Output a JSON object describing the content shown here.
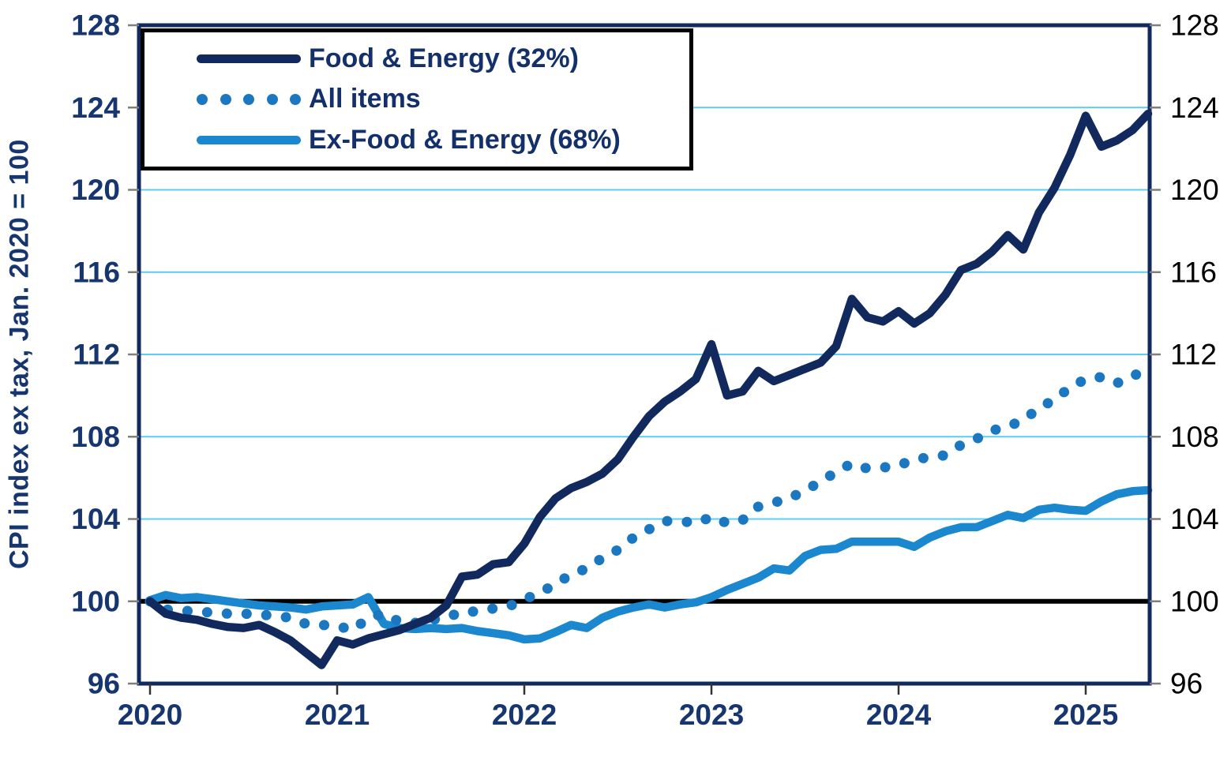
{
  "colors": {
    "navy": "#12295e",
    "mid_blue": "#1b78c0",
    "light_blue": "#1b87ce",
    "grid_cyan": "#5cccf2",
    "reference_black": "#000000",
    "axis_text_navy": "#17356f",
    "right_axis_text": "#000000",
    "tick_gray": "#7f7f7f",
    "legend_border": "#000000",
    "background": "#ffffff"
  },
  "chart_data": {
    "type": "line",
    "title": "",
    "xlabel": "",
    "ylabel": "CPI index ex tax, Jan. 2020 = 100",
    "ylim": [
      96,
      128
    ],
    "yticks": [
      96,
      100,
      104,
      108,
      112,
      116,
      120,
      124,
      128
    ],
    "gridlines": [
      104,
      108,
      112,
      116,
      120,
      124
    ],
    "grid": "horizontal-only",
    "legend_position": "top-left",
    "reference_line": {
      "value": 100,
      "color": "#000000"
    },
    "xticks": [
      "2020",
      "2021",
      "2022",
      "2023",
      "2024",
      "2025"
    ],
    "x_months": [
      "2020-01",
      "2020-02",
      "2020-03",
      "2020-04",
      "2020-05",
      "2020-06",
      "2020-07",
      "2020-08",
      "2020-09",
      "2020-10",
      "2020-11",
      "2020-12",
      "2021-01",
      "2021-02",
      "2021-03",
      "2021-04",
      "2021-05",
      "2021-06",
      "2021-07",
      "2021-08",
      "2021-09",
      "2021-10",
      "2021-11",
      "2021-12",
      "2022-01",
      "2022-02",
      "2022-03",
      "2022-04",
      "2022-05",
      "2022-06",
      "2022-07",
      "2022-08",
      "2022-09",
      "2022-10",
      "2022-11",
      "2022-12",
      "2023-01",
      "2023-02",
      "2023-03",
      "2023-04",
      "2023-05",
      "2023-06",
      "2023-07",
      "2023-08",
      "2023-09",
      "2023-10",
      "2023-11",
      "2023-12",
      "2024-01",
      "2024-02",
      "2024-03",
      "2024-04",
      "2024-05",
      "2024-06",
      "2024-07",
      "2024-08",
      "2024-09",
      "2024-10",
      "2024-11",
      "2024-12",
      "2025-01",
      "2025-02",
      "2025-03",
      "2025-04",
      "2025-05"
    ],
    "series": [
      {
        "name": "Food & Energy (32%)",
        "color": "#12295e",
        "style": "solid",
        "values": [
          100.0,
          99.4,
          99.2,
          99.1,
          98.9,
          98.75,
          98.7,
          98.85,
          98.5,
          98.1,
          97.5,
          96.9,
          98.1,
          97.9,
          98.2,
          98.4,
          98.6,
          98.9,
          99.2,
          99.8,
          101.2,
          101.3,
          101.8,
          101.9,
          102.8,
          104.1,
          105.0,
          105.5,
          105.8,
          106.2,
          106.9,
          108.0,
          109.0,
          109.7,
          110.2,
          110.8,
          112.5,
          110.0,
          110.2,
          111.2,
          110.7,
          111.0,
          111.3,
          111.6,
          112.4,
          114.7,
          113.8,
          113.6,
          114.1,
          113.5,
          114.0,
          114.9,
          116.1,
          116.4,
          117.0,
          117.8,
          117.1,
          118.9,
          120.1,
          121.7,
          123.6,
          122.1,
          122.4,
          122.9,
          123.7
        ]
      },
      {
        "name": "All items",
        "color": "#1b78c0",
        "style": "dotted",
        "values": [
          100.0,
          99.6,
          99.55,
          99.5,
          99.45,
          99.4,
          99.4,
          99.35,
          99.3,
          99.2,
          98.9,
          98.85,
          98.8,
          98.6,
          99.2,
          99.4,
          99.0,
          98.95,
          99.1,
          99.2,
          99.5,
          99.5,
          99.65,
          99.75,
          100.1,
          100.4,
          100.85,
          101.3,
          101.6,
          102.1,
          102.5,
          103.1,
          103.5,
          103.9,
          103.9,
          103.8,
          104.1,
          103.8,
          103.95,
          104.6,
          104.8,
          105.0,
          105.4,
          105.8,
          106.3,
          106.7,
          106.45,
          106.5,
          106.6,
          106.9,
          107.0,
          107.1,
          107.6,
          107.9,
          108.3,
          108.5,
          108.8,
          109.4,
          109.8,
          110.4,
          110.8,
          110.9,
          110.6,
          111.0,
          111.1
        ]
      },
      {
        "name": "Ex-Food & Energy (68%)",
        "color": "#1b87ce",
        "style": "solid",
        "values": [
          100.05,
          100.3,
          100.15,
          100.2,
          100.1,
          100.0,
          99.9,
          99.8,
          99.75,
          99.7,
          99.6,
          99.75,
          99.8,
          99.85,
          100.2,
          98.9,
          98.7,
          98.65,
          98.7,
          98.65,
          98.7,
          98.55,
          98.45,
          98.35,
          98.15,
          98.2,
          98.5,
          98.85,
          98.7,
          99.2,
          99.5,
          99.7,
          99.85,
          99.7,
          99.85,
          99.95,
          100.2,
          100.55,
          100.85,
          101.15,
          101.6,
          101.5,
          102.2,
          102.5,
          102.55,
          102.9,
          102.9,
          102.9,
          102.9,
          102.65,
          103.1,
          103.4,
          103.6,
          103.6,
          103.9,
          104.2,
          104.05,
          104.45,
          104.55,
          104.45,
          104.4,
          104.85,
          105.2,
          105.35,
          105.4
        ]
      }
    ]
  }
}
